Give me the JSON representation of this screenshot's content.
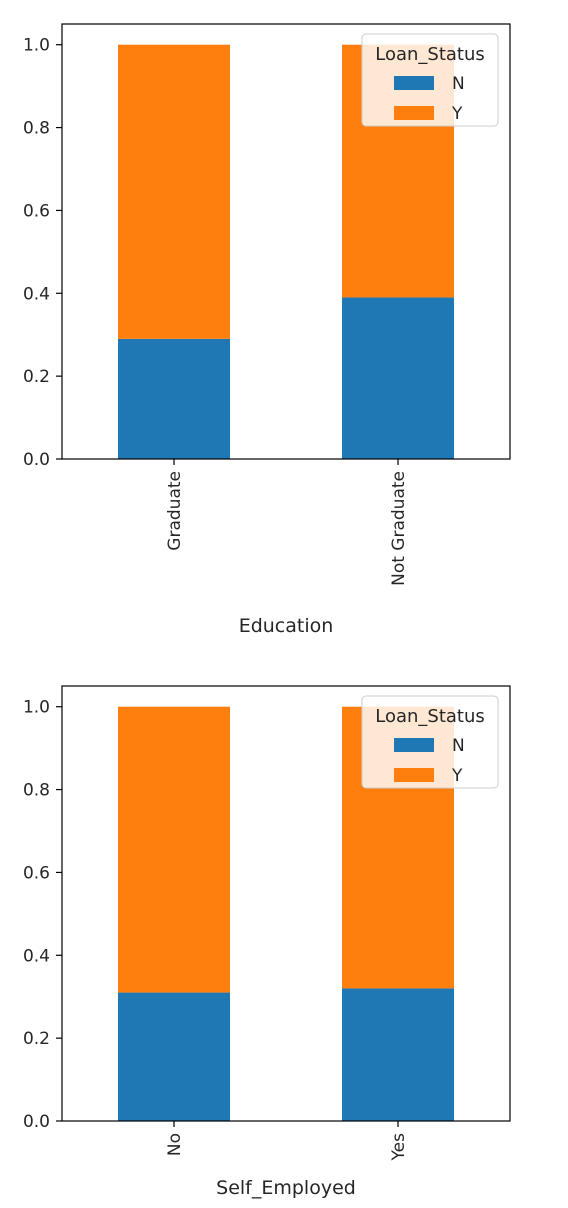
{
  "chart_data": [
    {
      "type": "bar",
      "stacked": true,
      "categories": [
        "Graduate",
        "Not Graduate"
      ],
      "xlabel": "Education",
      "ylabel": "",
      "ylim": [
        0,
        1.05
      ],
      "yticks": [
        "0.0",
        "0.2",
        "0.4",
        "0.6",
        "0.8",
        "1.0"
      ],
      "x_tick_rotation": "vertical",
      "legend": {
        "title": "Loan_Status",
        "placement": "top-right"
      },
      "series": [
        {
          "name": "N",
          "color": "#1f77b4",
          "values": [
            0.29,
            0.39
          ]
        },
        {
          "name": "Y",
          "color": "#ff7f0e",
          "values": [
            0.71,
            0.61
          ]
        }
      ]
    },
    {
      "type": "bar",
      "stacked": true,
      "categories": [
        "No",
        "Yes"
      ],
      "xlabel": "Self_Employed",
      "ylabel": "",
      "ylim": [
        0,
        1.05
      ],
      "yticks": [
        "0.0",
        "0.2",
        "0.4",
        "0.6",
        "0.8",
        "1.0"
      ],
      "x_tick_rotation": "vertical",
      "legend": {
        "title": "Loan_Status",
        "placement": "top-right"
      },
      "series": [
        {
          "name": "N",
          "color": "#1f77b4",
          "values": [
            0.31,
            0.32
          ]
        },
        {
          "name": "Y",
          "color": "#ff7f0e",
          "values": [
            0.69,
            0.68
          ]
        }
      ]
    }
  ]
}
